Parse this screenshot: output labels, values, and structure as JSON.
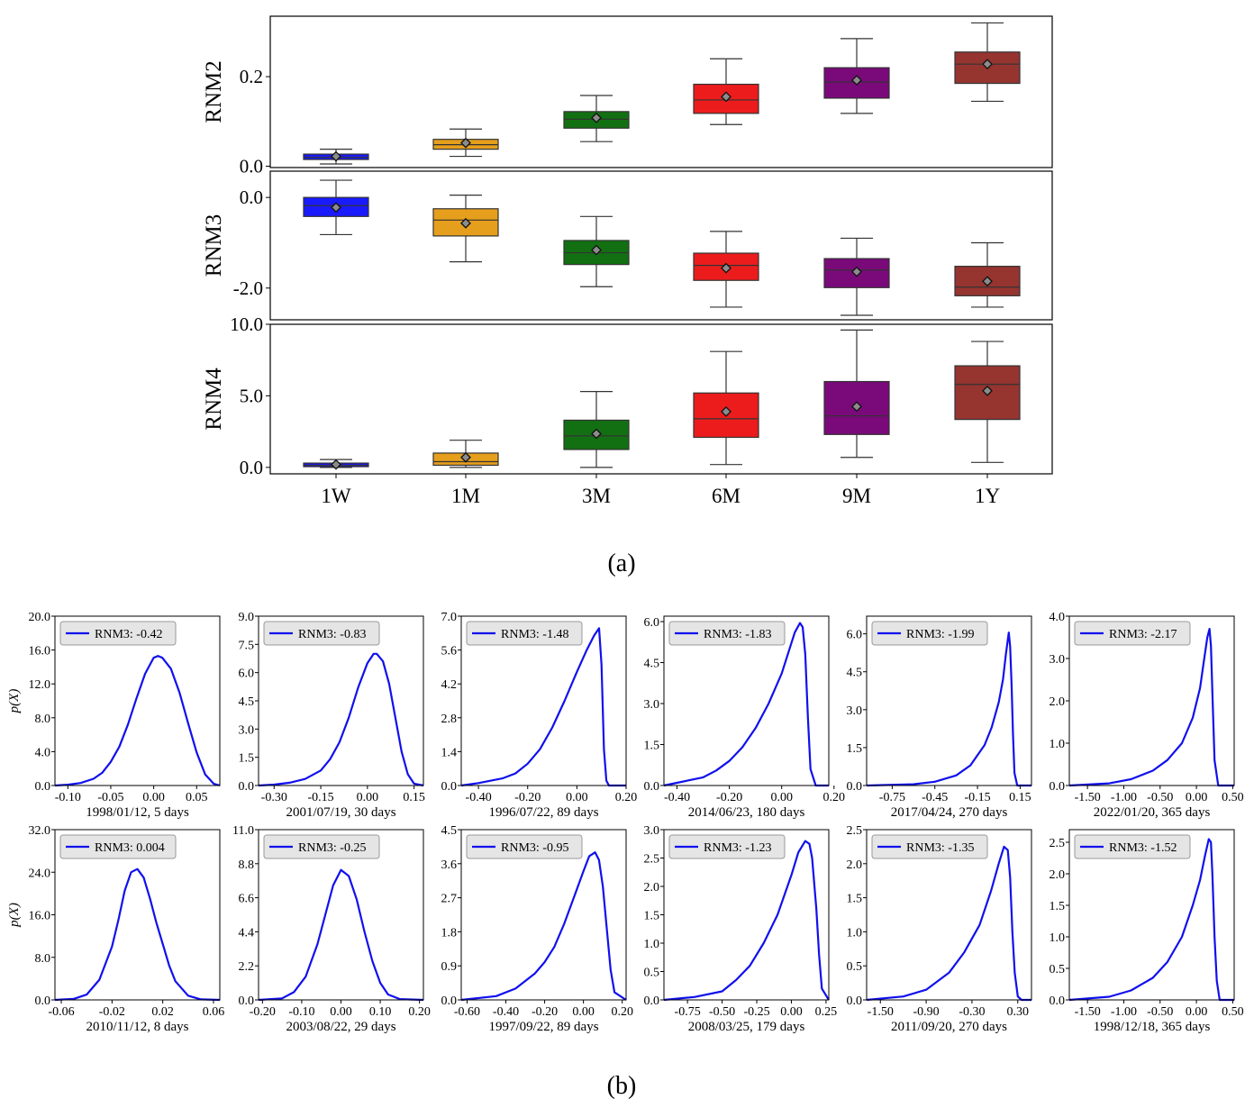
{
  "panel_labels": {
    "a": "(a)",
    "b": "(b)"
  },
  "colors": {
    "1W": "#1a1aff",
    "1M": "#e69f1c",
    "3M": "#127012",
    "6M": "#ec1c1c",
    "9M": "#7a0a7a",
    "1Y": "#963430",
    "density": "#1010ee"
  },
  "chart_data": [
    {
      "type": "box",
      "ylabel": "RNM2",
      "categories": [
        "1W",
        "1M",
        "3M",
        "6M",
        "9M",
        "1Y"
      ],
      "ylim": [
        -0.003,
        0.335
      ],
      "yticks": [
        0.0,
        0.2
      ],
      "ytick_labels": [
        "0.0",
        "0.2"
      ],
      "boxes": [
        {
          "whislo": 0.005,
          "q1": 0.015,
          "med": 0.02,
          "q3": 0.027,
          "whishi": 0.038,
          "mean": 0.022
        },
        {
          "whislo": 0.022,
          "q1": 0.038,
          "med": 0.048,
          "q3": 0.06,
          "whishi": 0.083,
          "mean": 0.052
        },
        {
          "whislo": 0.055,
          "q1": 0.085,
          "med": 0.105,
          "q3": 0.122,
          "whishi": 0.158,
          "mean": 0.108
        },
        {
          "whislo": 0.093,
          "q1": 0.118,
          "med": 0.148,
          "q3": 0.183,
          "whishi": 0.24,
          "mean": 0.155
        },
        {
          "whislo": 0.118,
          "q1": 0.152,
          "med": 0.188,
          "q3": 0.22,
          "whishi": 0.285,
          "mean": 0.192
        },
        {
          "whislo": 0.145,
          "q1": 0.185,
          "med": 0.228,
          "q3": 0.255,
          "whishi": 0.32,
          "mean": 0.228
        }
      ]
    },
    {
      "type": "box",
      "ylabel": "RNM3",
      "categories": [
        "1W",
        "1M",
        "3M",
        "6M",
        "9M",
        "1Y"
      ],
      "ylim": [
        -2.7,
        0.58
      ],
      "yticks": [
        0.0,
        -2.0
      ],
      "ytick_labels": [
        "0.0",
        "-2.0"
      ],
      "boxes": [
        {
          "whislo": -0.82,
          "q1": -0.42,
          "med": -0.18,
          "q3": 0.0,
          "whishi": 0.38,
          "mean": -0.22
        },
        {
          "whislo": -1.42,
          "q1": -0.85,
          "med": -0.5,
          "q3": -0.25,
          "whishi": 0.05,
          "mean": -0.57
        },
        {
          "whislo": -1.97,
          "q1": -1.48,
          "med": -1.22,
          "q3": -0.95,
          "whishi": -0.42,
          "mean": -1.16
        },
        {
          "whislo": -2.42,
          "q1": -1.83,
          "med": -1.5,
          "q3": -1.23,
          "whishi": -0.75,
          "mean": -1.56
        },
        {
          "whislo": -2.6,
          "q1": -1.99,
          "med": -1.6,
          "q3": -1.35,
          "whishi": -0.9,
          "mean": -1.64
        },
        {
          "whislo": -2.42,
          "q1": -2.17,
          "med": -1.98,
          "q3": -1.52,
          "whishi": -1.0,
          "mean": -1.85
        }
      ]
    },
    {
      "type": "box",
      "ylabel": "RNM4",
      "categories": [
        "1W",
        "1M",
        "3M",
        "6M",
        "9M",
        "1Y"
      ],
      "xlabels": [
        "1W",
        "1M",
        "3M",
        "6M",
        "9M",
        "1Y"
      ],
      "ylim": [
        -0.45,
        10.0
      ],
      "yticks": [
        0.0,
        5.0,
        10.0
      ],
      "ytick_labels": [
        "0.0",
        "5.0",
        "10.0"
      ],
      "boxes": [
        {
          "whislo": 0.0,
          "q1": 0.05,
          "med": 0.15,
          "q3": 0.3,
          "whishi": 0.55,
          "mean": 0.2
        },
        {
          "whislo": 0.0,
          "q1": 0.15,
          "med": 0.4,
          "q3": 1.0,
          "whishi": 1.9,
          "mean": 0.7
        },
        {
          "whislo": 0.0,
          "q1": 1.25,
          "med": 2.2,
          "q3": 3.3,
          "whishi": 5.3,
          "mean": 2.35
        },
        {
          "whislo": 0.2,
          "q1": 2.1,
          "med": 3.4,
          "q3": 5.2,
          "whishi": 8.1,
          "mean": 3.9
        },
        {
          "whislo": 0.7,
          "q1": 2.3,
          "med": 3.6,
          "q3": 6.0,
          "whishi": 9.6,
          "mean": 4.25
        },
        {
          "whislo": 0.35,
          "q1": 3.35,
          "med": 5.8,
          "q3": 7.1,
          "whishi": 8.8,
          "mean": 5.35
        }
      ]
    },
    {
      "type": "line",
      "legend": "RNM3: -0.42",
      "xlabel": "1998/01/12, 5 days",
      "ylabel": "p(X)",
      "xlim": [
        -0.115,
        0.077
      ],
      "ylim": [
        0,
        20
      ],
      "xticks": [
        -0.1,
        -0.05,
        0.0,
        0.05
      ],
      "xtick_labels": [
        "-0.10",
        "-0.05",
        "0.00",
        "0.05"
      ],
      "yticks": [
        0,
        4,
        8,
        12,
        16,
        20
      ],
      "ytick_labels": [
        "0.0",
        "4.0",
        "8.0",
        "12.0",
        "16.0",
        "20.0"
      ],
      "x": [
        -0.115,
        -0.1,
        -0.085,
        -0.07,
        -0.06,
        -0.05,
        -0.04,
        -0.03,
        -0.02,
        -0.01,
        0.0,
        0.005,
        0.01,
        0.02,
        0.03,
        0.04,
        0.05,
        0.06,
        0.07,
        0.077
      ],
      "y": [
        0.0,
        0.1,
        0.3,
        0.8,
        1.5,
        2.8,
        4.6,
        7.2,
        10.3,
        13.2,
        15.1,
        15.3,
        15.1,
        13.8,
        11.0,
        7.4,
        3.9,
        1.3,
        0.2,
        0.0
      ]
    },
    {
      "type": "line",
      "legend": "RNM3: -0.83",
      "xlabel": "2001/07/19, 30 days",
      "xlim": [
        -0.35,
        0.18
      ],
      "ylim": [
        0,
        9
      ],
      "xticks": [
        -0.3,
        -0.15,
        0.0,
        0.15
      ],
      "xtick_labels": [
        "-0.30",
        "-0.15",
        "0.00",
        "0.15"
      ],
      "yticks": [
        0,
        1.5,
        3.0,
        4.5,
        6.0,
        7.5,
        9.0
      ],
      "ytick_labels": [
        "0.0",
        "1.5",
        "3.0",
        "4.5",
        "6.0",
        "7.5",
        "9.0"
      ],
      "x": [
        -0.35,
        -0.3,
        -0.25,
        -0.2,
        -0.15,
        -0.12,
        -0.09,
        -0.06,
        -0.03,
        0.0,
        0.02,
        0.03,
        0.05,
        0.07,
        0.09,
        0.11,
        0.13,
        0.15,
        0.18
      ],
      "y": [
        0.0,
        0.05,
        0.15,
        0.35,
        0.8,
        1.4,
        2.3,
        3.6,
        5.2,
        6.5,
        7.0,
        7.0,
        6.6,
        5.4,
        3.6,
        1.8,
        0.6,
        0.1,
        0.0
      ]
    },
    {
      "type": "line",
      "legend": "RNM3: -1.48",
      "xlabel": "1996/07/22, 89 days",
      "xlim": [
        -0.47,
        0.2
      ],
      "ylim": [
        0,
        7
      ],
      "xticks": [
        -0.4,
        -0.2,
        0.0,
        0.2
      ],
      "xtick_labels": [
        "-0.40",
        "-0.20",
        "0.00",
        "0.20"
      ],
      "yticks": [
        0,
        1.4,
        2.8,
        4.2,
        5.6,
        7.0
      ],
      "ytick_labels": [
        "0.0",
        "1.4",
        "2.8",
        "4.2",
        "5.6",
        "7.0"
      ],
      "x": [
        -0.47,
        -0.4,
        -0.3,
        -0.25,
        -0.2,
        -0.15,
        -0.1,
        -0.05,
        0.0,
        0.04,
        0.07,
        0.09,
        0.1,
        0.11,
        0.12,
        0.13,
        0.2
      ],
      "y": [
        0.0,
        0.1,
        0.3,
        0.5,
        0.9,
        1.5,
        2.4,
        3.5,
        4.7,
        5.6,
        6.2,
        6.5,
        5.0,
        1.5,
        0.2,
        0.0,
        0.0
      ]
    },
    {
      "type": "line",
      "legend": "RNM3: -1.83",
      "xlabel": "2014/06/23, 180 days",
      "xlim": [
        -0.45,
        0.18
      ],
      "ylim": [
        0,
        6.2
      ],
      "xticks": [
        -0.4,
        -0.2,
        0.0,
        0.2
      ],
      "xtick_labels": [
        "-0.40",
        "-0.20",
        "0.00",
        "0.20"
      ],
      "yticks": [
        0,
        1.5,
        3.0,
        4.5,
        6.0
      ],
      "ytick_labels": [
        "0.0",
        "1.5",
        "3.0",
        "4.5",
        "6.0"
      ],
      "x": [
        -0.45,
        -0.4,
        -0.3,
        -0.25,
        -0.2,
        -0.15,
        -0.1,
        -0.05,
        0.0,
        0.03,
        0.05,
        0.07,
        0.08,
        0.09,
        0.1,
        0.11,
        0.13,
        0.18
      ],
      "y": [
        0.0,
        0.1,
        0.3,
        0.55,
        0.9,
        1.4,
        2.1,
        3.0,
        4.1,
        5.0,
        5.6,
        5.95,
        5.8,
        4.8,
        2.5,
        0.6,
        0.0,
        0.0
      ]
    },
    {
      "type": "line",
      "legend": "RNM3: -1.99",
      "xlabel": "2017/04/24, 270 days",
      "xlim": [
        -0.93,
        0.23
      ],
      "ylim": [
        0,
        6.7
      ],
      "xticks": [
        -0.75,
        -0.45,
        -0.15,
        0.15
      ],
      "xtick_labels": [
        "-0.75",
        "-0.45",
        "-0.15",
        "0.15"
      ],
      "yticks": [
        0,
        1.5,
        3.0,
        4.5,
        6.0
      ],
      "ytick_labels": [
        "0.0",
        "1.5",
        "3.0",
        "4.5",
        "6.0"
      ],
      "x": [
        -0.93,
        -0.6,
        -0.45,
        -0.3,
        -0.2,
        -0.1,
        -0.05,
        0.0,
        0.03,
        0.05,
        0.07,
        0.08,
        0.09,
        0.1,
        0.11,
        0.13,
        0.23
      ],
      "y": [
        0.0,
        0.05,
        0.15,
        0.4,
        0.8,
        1.6,
        2.3,
        3.3,
        4.2,
        5.2,
        6.05,
        5.5,
        4.0,
        2.0,
        0.5,
        0.0,
        0.0
      ]
    },
    {
      "type": "line",
      "legend": "RNM3: -2.17",
      "xlabel": "2022/01/20, 365 days",
      "xlim": [
        -1.75,
        0.52
      ],
      "ylim": [
        0,
        4
      ],
      "xticks": [
        -1.5,
        -1.0,
        -0.5,
        0.0,
        0.5
      ],
      "xtick_labels": [
        "-1.50",
        "-1.00",
        "-0.50",
        "0.00",
        "0.50"
      ],
      "yticks": [
        0,
        1.0,
        2.0,
        3.0,
        4.0
      ],
      "ytick_labels": [
        "0.0",
        "1.0",
        "2.0",
        "3.0",
        "4.0"
      ],
      "x": [
        -1.75,
        -1.2,
        -0.9,
        -0.6,
        -0.4,
        -0.2,
        -0.05,
        0.05,
        0.1,
        0.15,
        0.18,
        0.2,
        0.22,
        0.25,
        0.3,
        0.52
      ],
      "y": [
        0.0,
        0.05,
        0.15,
        0.35,
        0.6,
        1.0,
        1.6,
        2.3,
        2.9,
        3.5,
        3.7,
        3.3,
        2.2,
        0.6,
        0.0,
        0.0
      ]
    },
    {
      "type": "line",
      "legend": "RNM3: 0.004",
      "xlabel": "2010/11/12, 8 days",
      "ylabel": "p(X)",
      "xlim": [
        -0.065,
        0.065
      ],
      "ylim": [
        0,
        32
      ],
      "xticks": [
        -0.06,
        -0.02,
        0.02,
        0.06
      ],
      "xtick_labels": [
        "-0.06",
        "-0.02",
        "0.02",
        "0.06"
      ],
      "yticks": [
        0,
        8,
        16,
        24,
        32
      ],
      "ytick_labels": [
        "0.0",
        "8.0",
        "16.0",
        "24.0",
        "32.0"
      ],
      "x": [
        -0.065,
        -0.05,
        -0.04,
        -0.03,
        -0.02,
        -0.015,
        -0.01,
        -0.005,
        0.0,
        0.005,
        0.01,
        0.015,
        0.02,
        0.025,
        0.03,
        0.04,
        0.05,
        0.065
      ],
      "y": [
        0.0,
        0.2,
        1.0,
        3.8,
        10.0,
        15.0,
        20.5,
        24.0,
        24.6,
        23.0,
        19.0,
        14.5,
        10.5,
        6.5,
        3.5,
        0.8,
        0.1,
        0.0
      ]
    },
    {
      "type": "line",
      "legend": "RNM3: -0.25",
      "xlabel": "2003/08/22, 29 days",
      "xlim": [
        -0.21,
        0.21
      ],
      "ylim": [
        0,
        11
      ],
      "xticks": [
        -0.2,
        -0.1,
        0.0,
        0.1,
        0.2
      ],
      "xtick_labels": [
        "-0.20",
        "-0.10",
        "0.00",
        "0.10",
        "0.20"
      ],
      "yticks": [
        0,
        2.2,
        4.4,
        6.6,
        8.8,
        11.0
      ],
      "ytick_labels": [
        "0.0",
        "2.2",
        "4.4",
        "6.6",
        "8.8",
        "11.0"
      ],
      "x": [
        -0.21,
        -0.15,
        -0.12,
        -0.09,
        -0.06,
        -0.04,
        -0.02,
        0.0,
        0.02,
        0.04,
        0.06,
        0.08,
        0.1,
        0.12,
        0.15,
        0.21
      ],
      "y": [
        0.0,
        0.1,
        0.5,
        1.5,
        3.6,
        5.5,
        7.4,
        8.4,
        8.0,
        6.5,
        4.4,
        2.5,
        1.1,
        0.35,
        0.05,
        0.0
      ]
    },
    {
      "type": "line",
      "legend": "RNM3: -0.95",
      "xlabel": "1997/09/22, 89 days",
      "xlim": [
        -0.63,
        0.22
      ],
      "ylim": [
        0,
        4.5
      ],
      "xticks": [
        -0.6,
        -0.4,
        -0.2,
        0.0,
        0.2
      ],
      "xtick_labels": [
        "-0.60",
        "-0.40",
        "-0.20",
        "0.00",
        "0.20"
      ],
      "yticks": [
        0,
        0.9,
        1.8,
        2.7,
        3.6,
        4.5
      ],
      "ytick_labels": [
        "0.0",
        "0.9",
        "1.8",
        "2.7",
        "3.6",
        "4.5"
      ],
      "x": [
        -0.63,
        -0.45,
        -0.35,
        -0.25,
        -0.2,
        -0.15,
        -0.1,
        -0.05,
        0.0,
        0.03,
        0.06,
        0.08,
        0.1,
        0.12,
        0.14,
        0.16,
        0.22
      ],
      "y": [
        0.0,
        0.1,
        0.3,
        0.7,
        1.0,
        1.4,
        2.0,
        2.7,
        3.4,
        3.8,
        3.9,
        3.7,
        3.0,
        1.9,
        0.8,
        0.2,
        0.0
      ]
    },
    {
      "type": "line",
      "legend": "RNM3: -1.23",
      "xlabel": "2008/03/25, 179 days",
      "xlim": [
        -0.92,
        0.27
      ],
      "ylim": [
        0,
        3.0
      ],
      "xticks": [
        -0.75,
        -0.5,
        -0.25,
        0.0,
        0.25
      ],
      "xtick_labels": [
        "-0.75",
        "-0.50",
        "-0.25",
        "0.00",
        "0.25"
      ],
      "yticks": [
        0,
        0.5,
        1.0,
        1.5,
        2.0,
        2.5,
        3.0
      ],
      "ytick_labels": [
        "0.0",
        "0.5",
        "1.0",
        "1.5",
        "2.0",
        "2.5",
        "3.0"
      ],
      "x": [
        -0.92,
        -0.7,
        -0.5,
        -0.4,
        -0.3,
        -0.2,
        -0.1,
        0.0,
        0.05,
        0.1,
        0.13,
        0.15,
        0.18,
        0.2,
        0.22,
        0.27
      ],
      "y": [
        0.0,
        0.05,
        0.15,
        0.35,
        0.6,
        1.0,
        1.5,
        2.2,
        2.6,
        2.8,
        2.75,
        2.5,
        1.6,
        0.8,
        0.2,
        0.0
      ]
    },
    {
      "type": "line",
      "legend": "RNM3: -1.35",
      "xlabel": "2011/09/20, 270 days",
      "xlim": [
        -1.68,
        0.48
      ],
      "ylim": [
        0,
        2.5
      ],
      "xticks": [
        -1.5,
        -0.9,
        -0.3,
        0.3
      ],
      "xtick_labels": [
        "-1.50",
        "-0.90",
        "-0.30",
        "0.30"
      ],
      "yticks": [
        0,
        0.5,
        1.0,
        1.5,
        2.0,
        2.5
      ],
      "ytick_labels": [
        "0.0",
        "0.5",
        "1.0",
        "1.5",
        "2.0",
        "2.5"
      ],
      "x": [
        -1.68,
        -1.2,
        -0.9,
        -0.6,
        -0.4,
        -0.2,
        -0.05,
        0.05,
        0.12,
        0.17,
        0.2,
        0.23,
        0.26,
        0.3,
        0.35,
        0.48
      ],
      "y": [
        0.0,
        0.05,
        0.15,
        0.4,
        0.7,
        1.1,
        1.6,
        2.0,
        2.25,
        2.2,
        1.8,
        1.0,
        0.4,
        0.05,
        0.0,
        0.0
      ]
    },
    {
      "type": "line",
      "legend": "RNM3: -1.52",
      "xlabel": "1998/12/18, 365 days",
      "xlim": [
        -1.75,
        0.52
      ],
      "ylim": [
        0,
        2.7
      ],
      "xticks": [
        -1.5,
        -1.0,
        -0.5,
        0.0,
        0.5
      ],
      "xtick_labels": [
        "-1.50",
        "-1.00",
        "-0.50",
        "0.00",
        "0.50"
      ],
      "yticks": [
        0,
        0.5,
        1.0,
        1.5,
        2.0,
        2.5
      ],
      "ytick_labels": [
        "0.0",
        "0.5",
        "1.0",
        "1.5",
        "2.0",
        "2.5"
      ],
      "x": [
        -1.75,
        -1.2,
        -0.9,
        -0.6,
        -0.4,
        -0.2,
        -0.05,
        0.05,
        0.12,
        0.17,
        0.2,
        0.22,
        0.25,
        0.28,
        0.32,
        0.52
      ],
      "y": [
        0.0,
        0.05,
        0.15,
        0.35,
        0.6,
        1.0,
        1.5,
        1.9,
        2.3,
        2.55,
        2.5,
        2.0,
        1.0,
        0.3,
        0.0,
        0.0
      ]
    }
  ]
}
